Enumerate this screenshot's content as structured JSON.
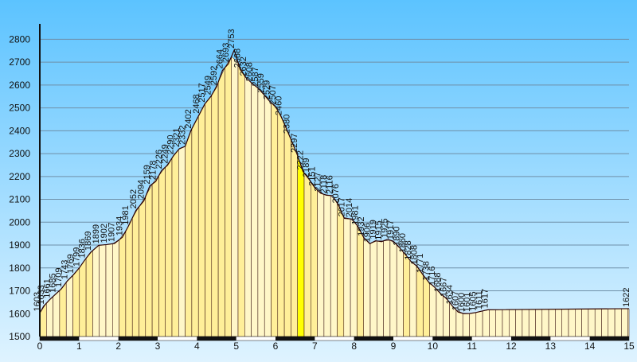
{
  "chart_data": {
    "type": "area",
    "title": "",
    "xlabel": "",
    "ylabel": "",
    "xlim": [
      0,
      15
    ],
    "ylim": [
      1500,
      2850
    ],
    "x_ticks": [
      "0",
      "1",
      "2",
      "3",
      "4",
      "5",
      "6",
      "7",
      "8",
      "9",
      "10",
      "11",
      "12",
      "13",
      "14",
      "15"
    ],
    "y_ticks": [
      "1500",
      "1600",
      "1700",
      "1800",
      "1900",
      "2000",
      "2100",
      "2200",
      "2300",
      "2400",
      "2500",
      "2600",
      "2700",
      "2800"
    ],
    "grid": true,
    "series": [
      {
        "points": [
          [
            0.0,
            1603
          ],
          [
            0.1,
            1633
          ],
          [
            0.25,
            1661
          ],
          [
            0.4,
            1685
          ],
          [
            0.55,
            1709
          ],
          [
            0.7,
            1743
          ],
          [
            0.85,
            1769
          ],
          [
            1.0,
            1799
          ],
          [
            1.15,
            1836
          ],
          [
            1.3,
            1869
          ],
          [
            1.5,
            1899
          ],
          [
            1.7,
            1902
          ],
          [
            1.9,
            1907
          ],
          [
            2.1,
            1934
          ],
          [
            2.25,
            1981
          ],
          [
            2.45,
            2052
          ],
          [
            2.65,
            2094
          ],
          [
            2.8,
            2159
          ],
          [
            2.95,
            2178
          ],
          [
            3.1,
            2226
          ],
          [
            3.25,
            2249
          ],
          [
            3.4,
            2290
          ],
          [
            3.55,
            2321
          ],
          [
            3.7,
            2332
          ],
          [
            3.85,
            2402
          ],
          [
            4.05,
            2468
          ],
          [
            4.2,
            2517
          ],
          [
            4.35,
            2549
          ],
          [
            4.5,
            2592
          ],
          [
            4.65,
            2664
          ],
          [
            4.8,
            2693
          ],
          [
            4.95,
            2753
          ],
          [
            5.1,
            2668
          ],
          [
            5.25,
            2632
          ],
          [
            5.4,
            2608
          ],
          [
            5.55,
            2587
          ],
          [
            5.7,
            2559
          ],
          [
            5.85,
            2529
          ],
          [
            6.0,
            2507
          ],
          [
            6.15,
            2460
          ],
          [
            6.35,
            2380
          ],
          [
            6.55,
            2297
          ],
          [
            6.7,
            2222
          ],
          [
            6.85,
            2189
          ],
          [
            7.0,
            2151
          ],
          [
            7.15,
            2127
          ],
          [
            7.3,
            2118
          ],
          [
            7.45,
            2116
          ],
          [
            7.6,
            2076
          ],
          [
            7.75,
            2017
          ],
          [
            7.95,
            2014
          ],
          [
            8.1,
            1981
          ],
          [
            8.25,
            1932
          ],
          [
            8.4,
            1906
          ],
          [
            8.55,
            1919
          ],
          [
            8.7,
            1915
          ],
          [
            8.85,
            1925
          ],
          [
            9.0,
            1917
          ],
          [
            9.15,
            1890
          ],
          [
            9.3,
            1860
          ],
          [
            9.45,
            1828
          ],
          [
            9.6,
            1808
          ],
          [
            9.75,
            1771
          ],
          [
            9.9,
            1738
          ],
          [
            10.05,
            1716
          ],
          [
            10.2,
            1688
          ],
          [
            10.35,
            1667
          ],
          [
            10.5,
            1634
          ],
          [
            10.65,
            1607
          ],
          [
            10.8,
            1600
          ],
          [
            10.95,
            1601
          ],
          [
            11.1,
            1605
          ],
          [
            11.25,
            1611
          ],
          [
            11.4,
            1617
          ],
          [
            15.0,
            1622
          ]
        ]
      }
    ],
    "labels": [
      "1603",
      "1633",
      "1661",
      "1685",
      "1709",
      "1743",
      "1769",
      "1799",
      "1836",
      "1869",
      "1899",
      "1902",
      "1907",
      "1934",
      "1981",
      "2052",
      "2094",
      "2159",
      "2178",
      "2226",
      "2249",
      "2290",
      "2321",
      "2332",
      "2402",
      "2468",
      "2517",
      "2549",
      "2592",
      "2664",
      "2693",
      "2753",
      "2668",
      "2632",
      "2608",
      "2587",
      "2559",
      "2529",
      "2507",
      "2460",
      "2380",
      "2297",
      "2222",
      "2189",
      "2151",
      "2127",
      "2118",
      "2116",
      "2076",
      "2017",
      "2014",
      "1981",
      "1932",
      "1906",
      "1919",
      "1915",
      "1925",
      "1917",
      "1890",
      "1860",
      "1828",
      "1808",
      "1771",
      "1738",
      "1716",
      "1688",
      "1667",
      "1634",
      "1607",
      "1600",
      "1601",
      "1605",
      "1611",
      "1617",
      "1622"
    ],
    "colors": {
      "background_top": "#5cc3ff",
      "background_bottom": "#dff3ff",
      "grid": "#6f8fa8",
      "axis": "#111111",
      "dark_red": "#5a0000",
      "orange_red": "#ff4a10",
      "orange": "#ff9a10",
      "light_orange": "#ffb347",
      "salmon": "#ffa17a",
      "pale_yellow": "#ffef99",
      "bright_yellow": "#ffff00",
      "cream": "#fff7c8"
    }
  }
}
